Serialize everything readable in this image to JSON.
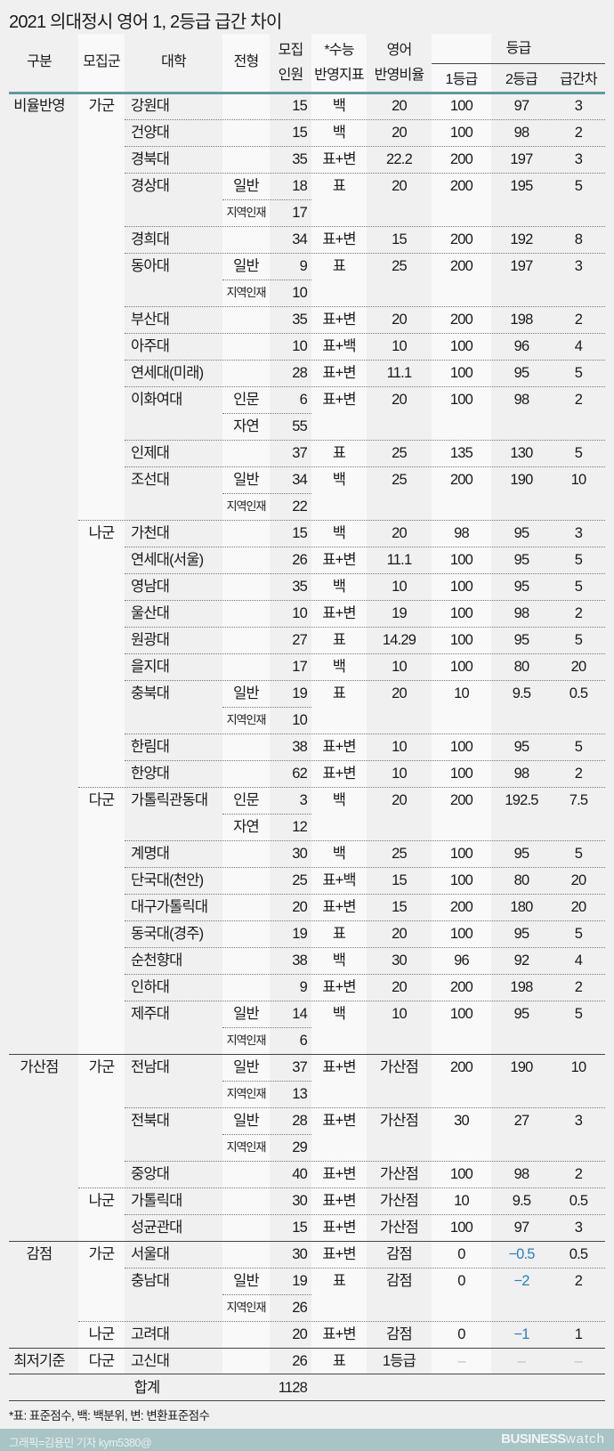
{
  "title": "2021 의대정시 영어 1, 2등급 급간 차이",
  "headers": {
    "group": "구분",
    "gun": "모집군",
    "univ": "대학",
    "type": "전형",
    "quota_1": "모집",
    "quota_2": "인원",
    "index_1": "*수능",
    "index_2": "반영지표",
    "ratio_1": "영어",
    "ratio_2": "반영비율",
    "grade": "등급",
    "g1": "1등급",
    "g2": "2등급",
    "diff": "급간차"
  },
  "rows": [
    {
      "g": "비율반영",
      "m": "가군",
      "u": "강원대",
      "t": "",
      "n": "15",
      "idx": "백",
      "r": "20",
      "g1": "100",
      "g2": "97",
      "d": "3"
    },
    {
      "u": "건양대",
      "t": "",
      "n": "15",
      "idx": "백",
      "r": "20",
      "g1": "100",
      "g2": "98",
      "d": "2"
    },
    {
      "u": "경북대",
      "t": "",
      "n": "35",
      "idx": "표+변",
      "r": "22.2",
      "g1": "200",
      "g2": "197",
      "d": "3"
    },
    {
      "u": "경상대",
      "t": "일반",
      "n": "18",
      "idx": "표",
      "r": "20",
      "g1": "200",
      "g2": "195",
      "d": "5"
    },
    {
      "t": "지역인재",
      "n": "17"
    },
    {
      "u": "경희대",
      "t": "",
      "n": "34",
      "idx": "표+변",
      "r": "15",
      "g1": "200",
      "g2": "192",
      "d": "8"
    },
    {
      "u": "동아대",
      "t": "일반",
      "n": "9",
      "idx": "표",
      "r": "25",
      "g1": "200",
      "g2": "197",
      "d": "3"
    },
    {
      "t": "지역인재",
      "n": "10"
    },
    {
      "u": "부산대",
      "t": "",
      "n": "35",
      "idx": "표+변",
      "r": "20",
      "g1": "200",
      "g2": "198",
      "d": "2"
    },
    {
      "u": "아주대",
      "t": "",
      "n": "10",
      "idx": "표+백",
      "r": "10",
      "g1": "100",
      "g2": "96",
      "d": "4"
    },
    {
      "u": "연세대(미래)",
      "t": "",
      "n": "28",
      "idx": "표+변",
      "r": "11.1",
      "g1": "100",
      "g2": "95",
      "d": "5"
    },
    {
      "u": "이화여대",
      "t": "인문",
      "n": "6",
      "idx": "표+변",
      "r": "20",
      "g1": "100",
      "g2": "98",
      "d": "2"
    },
    {
      "t": "자연",
      "n": "55"
    },
    {
      "u": "인제대",
      "t": "",
      "n": "37",
      "idx": "표",
      "r": "25",
      "g1": "135",
      "g2": "130",
      "d": "5"
    },
    {
      "u": "조선대",
      "t": "일반",
      "n": "34",
      "idx": "백",
      "r": "25",
      "g1": "200",
      "g2": "190",
      "d": "10"
    },
    {
      "t": "지역인재",
      "n": "22"
    },
    {
      "m": "나군",
      "u": "가천대",
      "t": "",
      "n": "15",
      "idx": "백",
      "r": "20",
      "g1": "98",
      "g2": "95",
      "d": "3"
    },
    {
      "u": "연세대(서울)",
      "t": "",
      "n": "26",
      "idx": "표+변",
      "r": "11.1",
      "g1": "100",
      "g2": "95",
      "d": "5"
    },
    {
      "u": "영남대",
      "t": "",
      "n": "35",
      "idx": "백",
      "r": "10",
      "g1": "100",
      "g2": "95",
      "d": "5"
    },
    {
      "u": "울산대",
      "t": "",
      "n": "10",
      "idx": "표+변",
      "r": "19",
      "g1": "100",
      "g2": "98",
      "d": "2"
    },
    {
      "u": "원광대",
      "t": "",
      "n": "27",
      "idx": "표",
      "r": "14.29",
      "g1": "100",
      "g2": "95",
      "d": "5"
    },
    {
      "u": "을지대",
      "t": "",
      "n": "17",
      "idx": "백",
      "r": "10",
      "g1": "100",
      "g2": "80",
      "d": "20"
    },
    {
      "u": "충북대",
      "t": "일반",
      "n": "19",
      "idx": "표",
      "r": "20",
      "g1": "10",
      "g2": "9.5",
      "d": "0.5"
    },
    {
      "t": "지역인재",
      "n": "10"
    },
    {
      "u": "한림대",
      "t": "",
      "n": "38",
      "idx": "표+변",
      "r": "10",
      "g1": "100",
      "g2": "95",
      "d": "5"
    },
    {
      "u": "한양대",
      "t": "",
      "n": "62",
      "idx": "표+변",
      "r": "10",
      "g1": "100",
      "g2": "98",
      "d": "2"
    },
    {
      "m": "다군",
      "u": "가톨릭관동대",
      "t": "인문",
      "n": "3",
      "idx": "백",
      "r": "20",
      "g1": "200",
      "g2": "192.5",
      "d": "7.5"
    },
    {
      "t": "자연",
      "n": "12"
    },
    {
      "u": "계명대",
      "t": "",
      "n": "30",
      "idx": "백",
      "r": "25",
      "g1": "100",
      "g2": "95",
      "d": "5"
    },
    {
      "u": "단국대(천안)",
      "t": "",
      "n": "25",
      "idx": "표+백",
      "r": "15",
      "g1": "100",
      "g2": "80",
      "d": "20"
    },
    {
      "u": "대구가톨릭대",
      "t": "",
      "n": "20",
      "idx": "표+변",
      "r": "15",
      "g1": "200",
      "g2": "180",
      "d": "20"
    },
    {
      "u": "동국대(경주)",
      "t": "",
      "n": "19",
      "idx": "표",
      "r": "20",
      "g1": "100",
      "g2": "95",
      "d": "5"
    },
    {
      "u": "순천향대",
      "t": "",
      "n": "38",
      "idx": "백",
      "r": "30",
      "g1": "96",
      "g2": "92",
      "d": "4"
    },
    {
      "u": "인하대",
      "t": "",
      "n": "9",
      "idx": "표+변",
      "r": "20",
      "g1": "200",
      "g2": "198",
      "d": "2"
    },
    {
      "u": "제주대",
      "t": "일반",
      "n": "14",
      "idx": "백",
      "r": "10",
      "g1": "100",
      "g2": "95",
      "d": "5"
    },
    {
      "t": "지역인재",
      "n": "6"
    },
    {
      "g": "가산점",
      "m": "가군",
      "u": "전남대",
      "t": "일반",
      "n": "37",
      "idx": "표+변",
      "r": "가산점",
      "g1": "200",
      "g2": "190",
      "d": "10"
    },
    {
      "t": "지역인재",
      "n": "13"
    },
    {
      "u": "전북대",
      "t": "일반",
      "n": "28",
      "idx": "표+변",
      "r": "가산점",
      "g1": "30",
      "g2": "27",
      "d": "3"
    },
    {
      "t": "지역인재",
      "n": "29"
    },
    {
      "u": "중앙대",
      "t": "",
      "n": "40",
      "idx": "표+변",
      "r": "가산점",
      "g1": "100",
      "g2": "98",
      "d": "2"
    },
    {
      "m": "나군",
      "u": "가톨릭대",
      "t": "",
      "n": "30",
      "idx": "표+변",
      "r": "가산점",
      "g1": "10",
      "g2": "9.5",
      "d": "0.5"
    },
    {
      "u": "성균관대",
      "t": "",
      "n": "15",
      "idx": "표+변",
      "r": "가산점",
      "g1": "100",
      "g2": "97",
      "d": "3"
    },
    {
      "g": "감점",
      "m": "가군",
      "u": "서울대",
      "t": "",
      "n": "30",
      "idx": "표+변",
      "r": "감점",
      "g1": "0",
      "g2": "−0.5",
      "d": "0.5"
    },
    {
      "u": "충남대",
      "t": "일반",
      "n": "19",
      "idx": "표",
      "r": "감점",
      "g1": "0",
      "g2": "−2",
      "d": "2"
    },
    {
      "t": "지역인재",
      "n": "26"
    },
    {
      "m": "나군",
      "u": "고려대",
      "t": "",
      "n": "20",
      "idx": "표+변",
      "r": "감점",
      "g1": "0",
      "g2": "−1",
      "d": "1"
    },
    {
      "g": "최저기준",
      "m": "다군",
      "u": "고신대",
      "t": "",
      "n": "26",
      "idx": "표",
      "r": "1등급",
      "g1": "–",
      "g2": "–",
      "d": "–"
    }
  ],
  "total": {
    "label": "합계",
    "quota": "1128"
  },
  "footnote": "*표: 표준점수, 백: 백분위, 변: 변환표준점수",
  "credit": "그래픽=김용민 기자 kym5380@",
  "logo": {
    "bold": "BUSINESS",
    "light": "watch"
  },
  "colors": {
    "negative": "#2a7fc0",
    "header_rule": "#5e9c9c",
    "footer": "#a9c4c4"
  }
}
